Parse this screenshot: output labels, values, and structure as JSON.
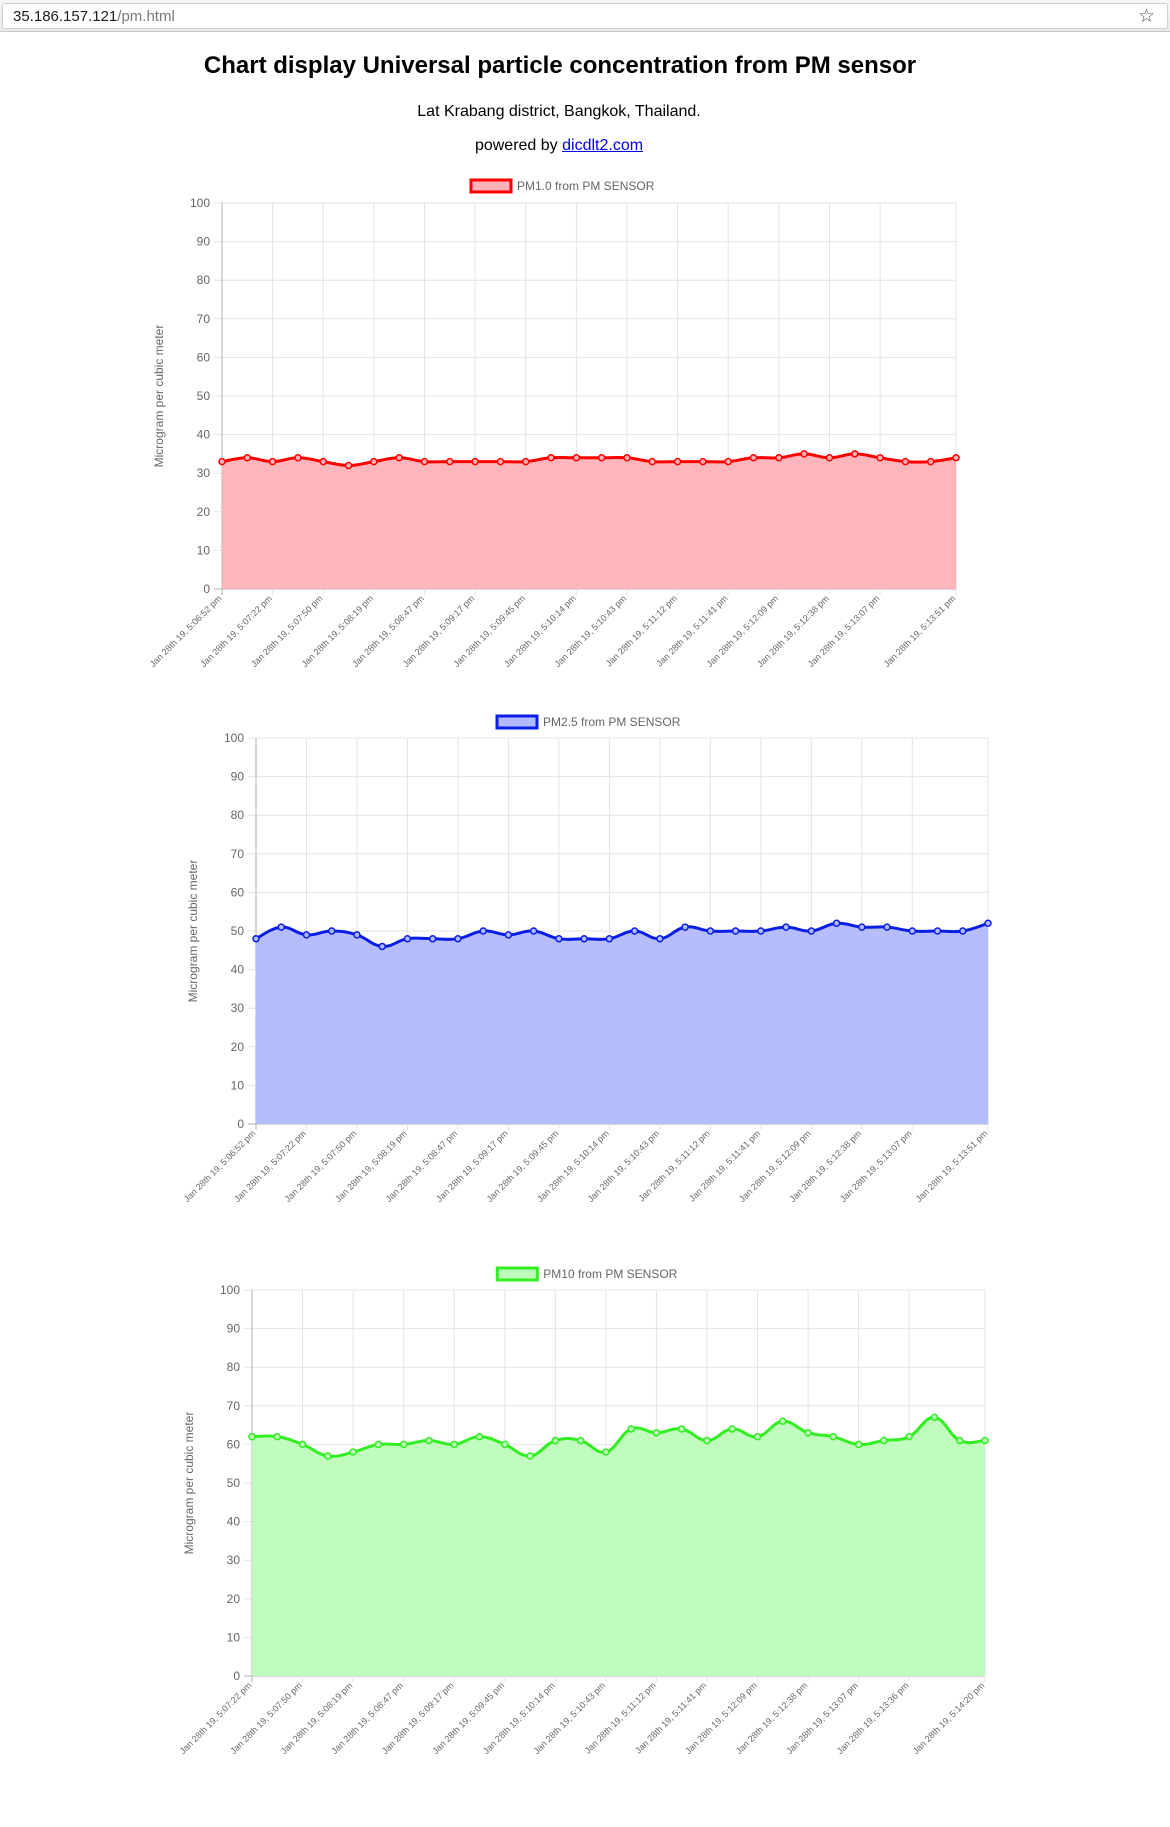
{
  "browser": {
    "url_host": "35.186.157.121",
    "url_path": "/pm.html",
    "star_icon": "star-icon"
  },
  "page": {
    "title": "Chart display Universal particle concentration from PM sensor",
    "location": "Lat Krabang district, Bangkok, Thailand.",
    "powered_prefix": "powered by",
    "powered_link": "dicdlt2.com"
  },
  "chart_data": [
    {
      "type": "area",
      "legend": "PM1.0 from PM SENSOR",
      "ylabel": "Microgram per cubic meter",
      "ylim": [
        0,
        100
      ],
      "yticks": [
        0,
        10,
        20,
        30,
        40,
        50,
        60,
        70,
        80,
        90,
        100
      ],
      "grid": true,
      "legend_position": "top",
      "color": "#ff0000",
      "fill": "#ffb1b8",
      "x": [
        "Jan 28th 19, 5:06:52 pm",
        "",
        "Jan 28th 19, 5:07:22 pm",
        "",
        "Jan 28th 19, 5:07:50 pm",
        "",
        "Jan 28th 19, 5:08:19 pm",
        "",
        "Jan 28th 19, 5:08:47 pm",
        "",
        "Jan 28th 19, 5:09:17 pm",
        "",
        "Jan 28th 19, 5:09:45 pm",
        "",
        "Jan 28th 19, 5:10:14 pm",
        "",
        "Jan 28th 19, 5:10:43 pm",
        "",
        "Jan 28th 19, 5:11:12 pm",
        "",
        "Jan 28th 19, 5:11:41 pm",
        "",
        "Jan 28th 19, 5:12:09 pm",
        "",
        "Jan 28th 19, 5:12:38 pm",
        "",
        "Jan 28th 19, 5:13:07 pm",
        "",
        "",
        "Jan 28th 19, 5:13:51 pm"
      ],
      "values": [
        33,
        34,
        33,
        34,
        33,
        32,
        33,
        34,
        33,
        33,
        33,
        33,
        33,
        34,
        34,
        34,
        34,
        33,
        33,
        33,
        33,
        34,
        34,
        35,
        34,
        35,
        34,
        33,
        33,
        34
      ]
    },
    {
      "type": "area",
      "legend": "PM2.5 from PM SENSOR",
      "ylabel": "Microgram per cubic meter",
      "ylim": [
        0,
        100
      ],
      "yticks": [
        0,
        10,
        20,
        30,
        40,
        50,
        60,
        70,
        80,
        90,
        100
      ],
      "grid": true,
      "legend_position": "top",
      "color": "#0a1ee6",
      "fill": "#b1b9ff",
      "x": [
        "Jan 28th 19, 5:06:52 pm",
        "",
        "Jan 28th 19, 5:07:22 pm",
        "",
        "Jan 28th 19, 5:07:50 pm",
        "",
        "Jan 28th 19, 5:08:19 pm",
        "",
        "Jan 28th 19, 5:08:47 pm",
        "",
        "Jan 28th 19, 5:09:17 pm",
        "",
        "Jan 28th 19, 5:09:45 pm",
        "",
        "Jan 28th 19, 5:10:14 pm",
        "",
        "Jan 28th 19, 5:10:43 pm",
        "",
        "Jan 28th 19, 5:11:12 pm",
        "",
        "Jan 28th 19, 5:11:41 pm",
        "",
        "Jan 28th 19, 5:12:09 pm",
        "",
        "Jan 28th 19, 5:12:38 pm",
        "",
        "Jan 28th 19, 5:13:07 pm",
        "",
        "",
        "Jan 28th 19, 5:13:51 pm"
      ],
      "values": [
        48,
        51,
        49,
        50,
        49,
        46,
        48,
        48,
        48,
        50,
        49,
        50,
        48,
        48,
        48,
        50,
        48,
        51,
        50,
        50,
        50,
        51,
        50,
        52,
        51,
        51,
        50,
        50,
        50,
        52
      ]
    },
    {
      "type": "area",
      "legend": "PM10 from PM SENSOR",
      "ylabel": "Microgram per cubic meter",
      "ylim": [
        0,
        100
      ],
      "yticks": [
        0,
        10,
        20,
        30,
        40,
        50,
        60,
        70,
        80,
        90,
        100
      ],
      "grid": true,
      "legend_position": "top",
      "color": "#33ee22",
      "fill": "#bdfcbb",
      "x": [
        "Jan 28th 19, 5:07:22 pm",
        "",
        "Jan 28th 19, 5:07:50 pm",
        "",
        "Jan 28th 19, 5:08:19 pm",
        "",
        "Jan 28th 19, 5:08:47 pm",
        "",
        "Jan 28th 19, 5:09:17 pm",
        "",
        "Jan 28th 19, 5:09:45 pm",
        "",
        "Jan 28th 19, 5:10:14 pm",
        "",
        "Jan 28th 19, 5:10:43 pm",
        "",
        "Jan 28th 19, 5:11:12 pm",
        "",
        "Jan 28th 19, 5:11:41 pm",
        "",
        "Jan 28th 19, 5:12:09 pm",
        "",
        "Jan 28th 19, 5:12:38 pm",
        "",
        "Jan 28th 19, 5:13:07 pm",
        "",
        "Jan 28th 19, 5:13:36 pm",
        "",
        "",
        "Jan 28th 19, 5:14:20 pm"
      ],
      "values": [
        62,
        62,
        60,
        57,
        58,
        60,
        60,
        61,
        60,
        62,
        60,
        57,
        61,
        61,
        58,
        64,
        63,
        64,
        61,
        64,
        62,
        66,
        63,
        62,
        60,
        61,
        62,
        67,
        61,
        61
      ]
    }
  ]
}
